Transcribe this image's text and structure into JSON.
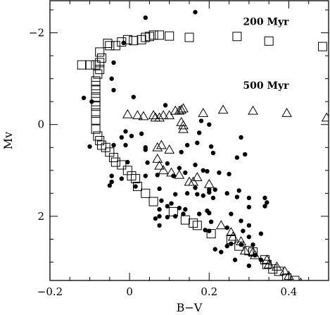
{
  "chart_data": {
    "type": "scatter",
    "title": "",
    "xlabel": "B−V",
    "ylabel": "Mv",
    "xlim": [
      -0.2,
      0.5
    ],
    "ylim": [
      -2.7,
      3.4
    ],
    "y_inverted": true,
    "grid": false,
    "x_ticks": [
      -0.2,
      0,
      0.2,
      0.4
    ],
    "x_tick_labels": [
      "−0.2",
      "0",
      "0.2",
      "0.4"
    ],
    "y_ticks": [
      -2,
      0,
      2
    ],
    "y_tick_labels": [
      "−2",
      "0",
      "2"
    ],
    "annotations": [
      {
        "text": "200 Myr",
        "x": 0.285,
        "y": -2.17
      },
      {
        "text": "500 Myr",
        "x": 0.285,
        "y": -0.78
      }
    ],
    "series": [
      {
        "marker": "filled-circle",
        "color": "#000000",
        "points": [
          [
            0.04,
            -2.33
          ],
          [
            0.165,
            -2.45
          ],
          [
            -0.015,
            -1.78
          ],
          [
            -0.04,
            -1.35
          ],
          [
            -0.045,
            -1.0
          ],
          [
            -0.04,
            -0.75
          ],
          [
            -0.115,
            -0.58
          ],
          [
            0.01,
            -0.6
          ],
          [
            0.09,
            -0.42
          ],
          [
            -0.095,
            -0.5
          ],
          [
            0.18,
            -0.08
          ],
          [
            0.2,
            0.0
          ],
          [
            0.175,
            0.18
          ],
          [
            0.28,
            0.28
          ],
          [
            0.17,
            0.4
          ],
          [
            -0.01,
            0.15
          ],
          [
            0.005,
            0.25
          ],
          [
            0.03,
            0.2
          ],
          [
            -0.02,
            0.28
          ],
          [
            -0.01,
            0.45
          ],
          [
            -0.04,
            0.45
          ],
          [
            0.04,
            0.5
          ],
          [
            -0.1,
            0.48
          ],
          [
            0.145,
            0.45
          ],
          [
            0.205,
            0.48
          ],
          [
            0.04,
            0.55
          ],
          [
            0.13,
            0.6
          ],
          [
            0.21,
            0.62
          ],
          [
            0.29,
            0.65
          ],
          [
            0.27,
            0.72
          ],
          [
            -0.005,
            0.82
          ],
          [
            0.045,
            0.83
          ],
          [
            0.095,
            0.85
          ],
          [
            0.125,
            0.95
          ],
          [
            0.165,
            0.88
          ],
          [
            0.185,
            1.0
          ],
          [
            0.195,
            1.02
          ],
          [
            0.14,
            1.05
          ],
          [
            0.25,
            1.08
          ],
          [
            0.225,
            1.05
          ],
          [
            -0.045,
            1.12
          ],
          [
            -0.02,
            1.18
          ],
          [
            0.04,
            1.12
          ],
          [
            0.07,
            1.1
          ],
          [
            0.11,
            1.12
          ],
          [
            -0.045,
            1.25
          ],
          [
            0.015,
            1.35
          ],
          [
            -0.05,
            1.33
          ],
          [
            0.075,
            1.4
          ],
          [
            0.165,
            1.38
          ],
          [
            0.2,
            1.42
          ],
          [
            0.215,
            1.42
          ],
          [
            0.275,
            1.44
          ],
          [
            0.115,
            1.52
          ],
          [
            0.145,
            1.5
          ],
          [
            0.17,
            1.52
          ],
          [
            0.185,
            1.55
          ],
          [
            0.2,
            1.48
          ],
          [
            0.21,
            1.6
          ],
          [
            0.245,
            1.5
          ],
          [
            0.27,
            1.58
          ],
          [
            0.3,
            1.6
          ],
          [
            0.08,
            1.66
          ],
          [
            0.095,
            1.78
          ],
          [
            0.105,
            1.72
          ],
          [
            0.125,
            1.82
          ],
          [
            0.14,
            1.85
          ],
          [
            0.075,
            1.85
          ],
          [
            0.3,
            1.8
          ],
          [
            0.34,
            1.6
          ],
          [
            0.345,
            1.7
          ],
          [
            0.34,
            1.78
          ],
          [
            0.075,
            2.0
          ],
          [
            0.065,
            2.05
          ],
          [
            0.095,
            2.02
          ],
          [
            0.115,
            2.0
          ],
          [
            0.135,
            1.95
          ],
          [
            0.175,
            1.95
          ],
          [
            0.195,
            1.88
          ],
          [
            0.2,
            1.93
          ],
          [
            0.255,
            1.95
          ],
          [
            0.075,
            2.2
          ],
          [
            0.205,
            2.12
          ],
          [
            0.19,
            2.3
          ],
          [
            0.2,
            2.32
          ],
          [
            0.245,
            2.25
          ],
          [
            0.28,
            2.1
          ],
          [
            0.285,
            2.32
          ],
          [
            0.3,
            2.2
          ],
          [
            0.3,
            2.45
          ],
          [
            0.33,
            2.38
          ],
          [
            0.255,
            2.6
          ],
          [
            0.28,
            2.62
          ],
          [
            0.245,
            2.65
          ],
          [
            0.31,
            2.62
          ],
          [
            0.215,
            2.72
          ],
          [
            0.23,
            2.78
          ],
          [
            0.265,
            2.95
          ],
          [
            0.315,
            2.85
          ],
          [
            0.33,
            2.95
          ],
          [
            0.3,
            3.08
          ]
        ]
      },
      {
        "marker": "open-square",
        "color": "#000000",
        "points": [
          [
            -0.055,
            -1.77
          ],
          [
            -0.05,
            -1.72
          ],
          [
            -0.035,
            -1.72
          ],
          [
            -0.02,
            -1.8
          ],
          [
            -0.005,
            -1.85
          ],
          [
            0.01,
            -1.83
          ],
          [
            0.03,
            -1.85
          ],
          [
            0.04,
            -1.9
          ],
          [
            0.05,
            -1.92
          ],
          [
            0.06,
            -1.95
          ],
          [
            0.075,
            -1.95
          ],
          [
            0.1,
            -1.93
          ],
          [
            0.15,
            -1.9
          ],
          [
            0.27,
            -1.92
          ],
          [
            0.35,
            -1.82
          ],
          [
            0.485,
            -1.7
          ],
          [
            -0.075,
            -1.58
          ],
          [
            -0.07,
            -1.45
          ],
          [
            -0.075,
            -1.35
          ],
          [
            -0.085,
            -1.3
          ],
          [
            -0.1,
            -1.3
          ],
          [
            -0.12,
            -1.3
          ],
          [
            -0.075,
            -1.2
          ],
          [
            -0.08,
            -1.1
          ],
          [
            -0.085,
            -0.95
          ],
          [
            -0.085,
            -0.85
          ],
          [
            -0.085,
            -0.75
          ],
          [
            -0.085,
            -0.6
          ],
          [
            -0.085,
            -0.5
          ],
          [
            -0.085,
            -0.4
          ],
          [
            -0.085,
            -0.25
          ],
          [
            -0.085,
            -0.1
          ],
          [
            -0.085,
            0.1
          ],
          [
            -0.08,
            0.25
          ],
          [
            -0.075,
            0.35
          ],
          [
            -0.07,
            0.45
          ],
          [
            -0.06,
            0.5
          ],
          [
            -0.05,
            0.6
          ],
          [
            -0.04,
            0.72
          ],
          [
            -0.035,
            0.82
          ],
          [
            -0.02,
            0.88
          ],
          [
            -0.005,
            1.0
          ],
          [
            0.005,
            1.12
          ],
          [
            0.015,
            1.18
          ],
          [
            0.02,
            1.35
          ],
          [
            0.04,
            1.5
          ],
          [
            0.06,
            1.68
          ],
          [
            0.11,
            1.9
          ],
          [
            0.14,
            2.08
          ],
          [
            0.16,
            2.15
          ],
          [
            0.17,
            2.2
          ],
          [
            0.205,
            2.38
          ],
          [
            0.255,
            2.5
          ],
          [
            0.275,
            2.65
          ],
          [
            0.3,
            2.75
          ],
          [
            0.31,
            2.78
          ],
          [
            0.34,
            2.95
          ],
          [
            0.345,
            3.05
          ],
          [
            0.36,
            3.15
          ],
          [
            0.375,
            3.2
          ],
          [
            0.395,
            3.35
          ],
          [
            0.415,
            3.4
          ],
          [
            0.435,
            3.5
          ]
        ]
      },
      {
        "marker": "open-triangle",
        "color": "#000000",
        "points": [
          [
            -0.005,
            -0.22
          ],
          [
            0.02,
            -0.2
          ],
          [
            0.035,
            -0.18
          ],
          [
            0.06,
            -0.2
          ],
          [
            0.065,
            -0.15
          ],
          [
            0.075,
            -0.15
          ],
          [
            0.085,
            -0.2
          ],
          [
            0.125,
            -0.3
          ],
          [
            0.13,
            -0.32
          ],
          [
            0.135,
            -0.35
          ],
          [
            0.13,
            -0.05
          ],
          [
            0.135,
            0.02
          ],
          [
            0.135,
            0.1
          ],
          [
            0.1,
            -0.2
          ],
          [
            0.115,
            -0.3
          ],
          [
            0.185,
            -0.25
          ],
          [
            0.235,
            -0.32
          ],
          [
            0.31,
            -0.3
          ],
          [
            0.395,
            -0.25
          ],
          [
            0.495,
            -0.15
          ],
          [
            0.07,
            0.5
          ],
          [
            0.08,
            0.45
          ],
          [
            0.1,
            0.55
          ],
          [
            0.07,
            0.75
          ],
          [
            0.075,
            0.9
          ],
          [
            0.085,
            1.0
          ],
          [
            0.105,
            1.05
          ],
          [
            0.125,
            1.1
          ],
          [
            0.15,
            1.25
          ],
          [
            0.16,
            1.25
          ],
          [
            0.17,
            1.15
          ],
          [
            0.2,
            1.3
          ],
          [
            0.23,
            2.2
          ],
          [
            0.255,
            2.35
          ],
          [
            0.26,
            2.45
          ],
          [
            0.28,
            2.55
          ],
          [
            0.29,
            2.75
          ],
          [
            0.31,
            2.78
          ],
          [
            0.315,
            2.85
          ],
          [
            0.345,
            2.95
          ],
          [
            0.35,
            3.05
          ],
          [
            0.37,
            3.1
          ],
          [
            0.39,
            3.2
          ],
          [
            0.4,
            3.3
          ],
          [
            0.43,
            3.45
          ]
        ]
      }
    ]
  }
}
